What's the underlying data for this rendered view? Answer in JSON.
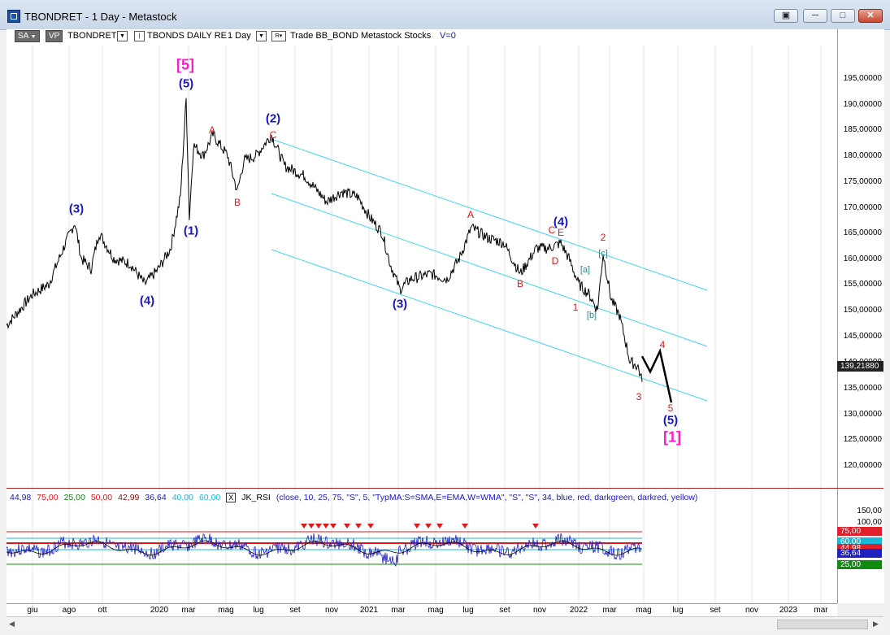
{
  "window": {
    "title": "TBONDRET - 1 Day - Metastock",
    "buttons": [
      "▣",
      "─",
      "□",
      "✕"
    ]
  },
  "toolbar": {
    "sa": "SA",
    "vp": "VP",
    "symbol": "TBONDRET",
    "security": "TBONDS DAILY RE",
    "period": "1 Day",
    "rest": "Trade  BB_BOND  Metastock  Stocks",
    "v": "V=0",
    "r": "R"
  },
  "price_axis": {
    "labels": [
      "195,00000",
      "190,00000",
      "185,00000",
      "180,00000",
      "175,00000",
      "170,00000",
      "165,00000",
      "160,00000",
      "155,00000",
      "150,00000",
      "145,00000",
      "140,00000",
      "135,00000",
      "130,00000",
      "125,00000",
      "120,00000"
    ],
    "last_price": "139,21880"
  },
  "rsi_axis": {
    "labels": [
      "150,00",
      "100,00"
    ],
    "badges": [
      {
        "text": "75,00",
        "color": "#e0202a"
      },
      {
        "text": "60,00",
        "color": "#18b8d8"
      },
      {
        "text": "44,98",
        "color": "#e0202a"
      },
      {
        "text": "36,64",
        "color": "#2020c0"
      },
      {
        "text": "25,00",
        "color": "#108a10"
      }
    ]
  },
  "date_axis": [
    "giu",
    "ago",
    "ott",
    "2020",
    "mar",
    "mag",
    "lug",
    "set",
    "nov",
    "2021",
    "mar",
    "mag",
    "lug",
    "set",
    "nov",
    "2022",
    "mar",
    "mag",
    "lug",
    "set",
    "nov",
    "2023",
    "mar"
  ],
  "indicator": {
    "values": [
      {
        "text": "44,98",
        "color": "#1818c0"
      },
      {
        "text": "75,00",
        "color": "#e01818"
      },
      {
        "text": "25,00",
        "color": "#108a10"
      },
      {
        "text": "50,00",
        "color": "#e01818"
      },
      {
        "text": "42,99",
        "color": "#8a1010"
      },
      {
        "text": "36,64",
        "color": "#1818c0"
      },
      {
        "text": "40,00",
        "color": "#18b8d8"
      },
      {
        "text": "60,00",
        "color": "#18b8d8"
      }
    ],
    "checkbox": "X",
    "name": "JK_RSI",
    "params": "(close,  10,  25,  75,  \"S\",  5,  \"TypMA:S=SMA,E=EMA,W=WMA\",  \"S\",  \"S\",  34,  blue,  red,  darkgreen,  darkred,  yellow)"
  },
  "waves": {
    "w5_top_mag": "[5]",
    "w5_top": "(5)",
    "w3": "(3)",
    "w4": "(4)",
    "w1": "(1)",
    "wA1": "A",
    "wB1": "B",
    "w2": "(2)",
    "wC1": "C",
    "w3b": "(3)",
    "wA2": "A",
    "wB2": "B",
    "w4b": "(4)",
    "wC2": "C",
    "wE": "E",
    "wD": "D",
    "wa": "[a]",
    "wb": "[b]",
    "wc": "[c]",
    "r1": "1",
    "r2": "2",
    "r3": "3",
    "r4": "4",
    "r5": "5",
    "w5_bot": "(5)",
    "w1_mag": "[1]"
  },
  "colors": {
    "price": "#000000",
    "channel": "#3ed8f0",
    "rsi_line": "#2020c0",
    "rsi_ob": "#e01818",
    "rsi_os": "#108a10",
    "rsi_mid": "#18b8d8"
  }
}
